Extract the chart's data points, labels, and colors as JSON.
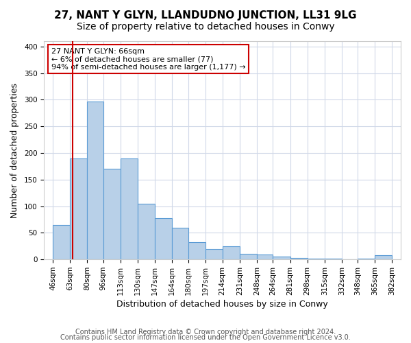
{
  "title": "27, NANT Y GLYN, LLANDUDNO JUNCTION, LL31 9LG",
  "subtitle": "Size of property relative to detached houses in Conwy",
  "xlabel": "Distribution of detached houses by size in Conwy",
  "ylabel": "Number of detached properties",
  "bar_color": "#b8d0e8",
  "bar_edge_color": "#5b9bd5",
  "background_color": "#ffffff",
  "grid_color": "#d0d8e8",
  "vline_color": "#cc0000",
  "annotation_border_color": "#cc0000",
  "annotation_line1": "27 NANT Y GLYN: 66sqm",
  "annotation_line2": "← 6% of detached houses are smaller (77)",
  "annotation_line3": "94% of semi-detached houses are larger (1,177) →",
  "bin_edges": [
    46,
    63,
    80,
    96,
    113,
    130,
    147,
    164,
    180,
    197,
    214,
    231,
    248,
    264,
    281,
    298,
    315,
    332,
    348,
    365,
    382
  ],
  "tick_labels": [
    "46sqm",
    "63sqm",
    "80sqm",
    "96sqm",
    "113sqm",
    "130sqm",
    "147sqm",
    "164sqm",
    "180sqm",
    "197sqm",
    "214sqm",
    "231sqm",
    "248sqm",
    "264sqm",
    "281sqm",
    "298sqm",
    "315sqm",
    "332sqm",
    "348sqm",
    "365sqm",
    "382sqm"
  ],
  "values": [
    65,
    190,
    296,
    170,
    190,
    105,
    78,
    60,
    32,
    20,
    25,
    10,
    9,
    6,
    3,
    2,
    1,
    0,
    2,
    8
  ],
  "vline_position": 66,
  "ylim": [
    0,
    410
  ],
  "yticks": [
    0,
    50,
    100,
    150,
    200,
    250,
    300,
    350,
    400
  ],
  "footer1": "Contains HM Land Registry data © Crown copyright and database right 2024.",
  "footer2": "Contains public sector information licensed under the Open Government Licence v3.0.",
  "title_fontsize": 11,
  "subtitle_fontsize": 10,
  "xlabel_fontsize": 9,
  "ylabel_fontsize": 9,
  "tick_fontsize": 7.5,
  "annotation_fontsize": 8,
  "footer_fontsize": 7
}
